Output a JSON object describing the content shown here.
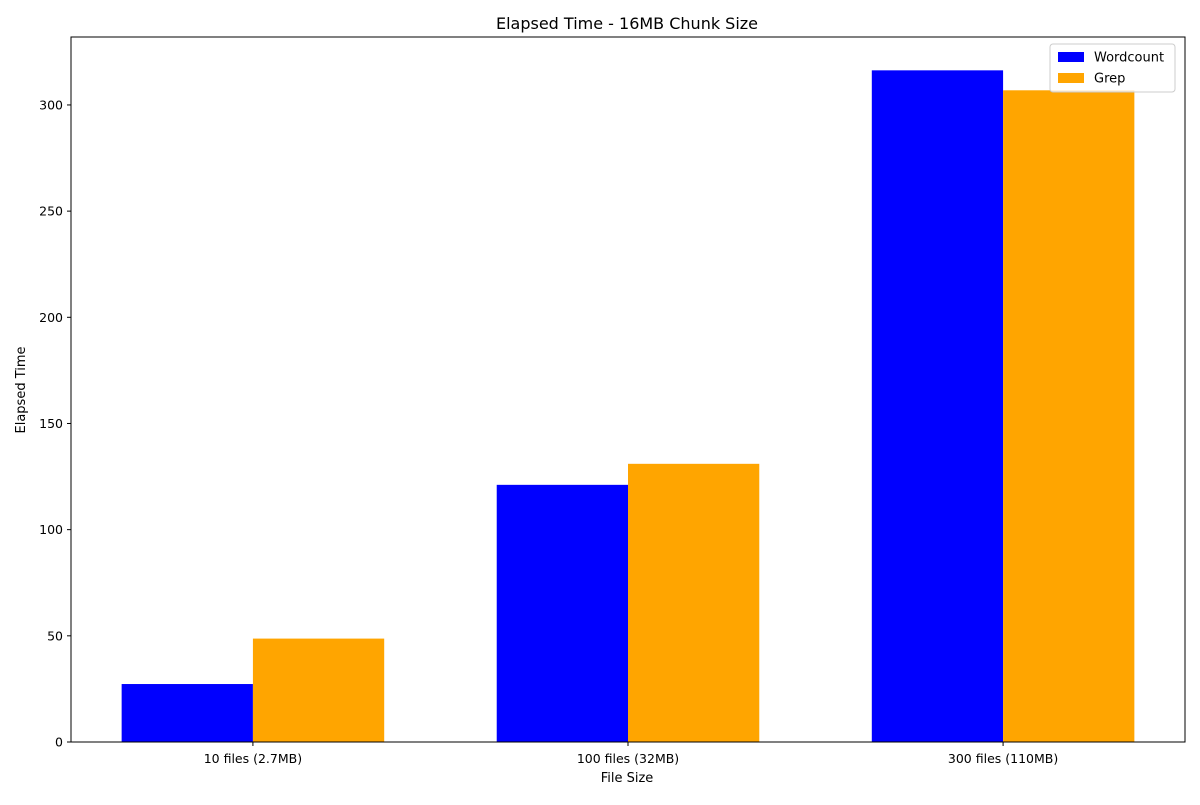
{
  "chart_data": {
    "type": "bar",
    "title": "Elapsed Time - 16MB Chunk Size",
    "xlabel": "File Size",
    "ylabel": "Elapsed Time",
    "categories": [
      "10 files (2.7MB)",
      "100 files (32MB)",
      "300 files (110MB)"
    ],
    "series": [
      {
        "name": "Wordcount",
        "color": "#0000ff",
        "values": [
          27.3,
          121.1,
          316.3
        ]
      },
      {
        "name": "Grep",
        "color": "#ffa500",
        "values": [
          48.7,
          131.0,
          306.9
        ]
      }
    ],
    "ylim": [
      0,
      332
    ],
    "yticks": [
      0,
      50,
      100,
      150,
      200,
      250,
      300
    ],
    "grid": false,
    "legend_position": "top-right"
  }
}
